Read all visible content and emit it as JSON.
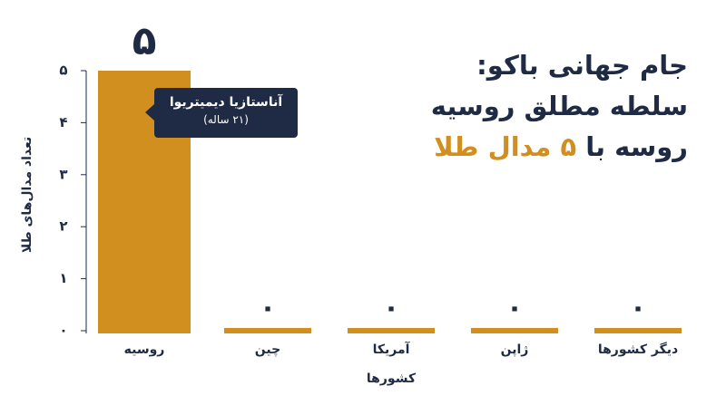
{
  "chart_data": {
    "type": "bar",
    "title": {
      "lines": [
        "جام جهانی باکو:",
        "سلطه مطلق روسیه",
        "روسه با"
      ],
      "highlight": "۵ مدال طلا"
    },
    "categories": [
      "روسیه",
      "چین",
      "آمریکا",
      "ژاپن",
      "دیگر کشورها"
    ],
    "values": [
      5,
      0,
      0,
      0,
      0
    ],
    "value_labels": [
      "۵",
      "۰",
      "۰",
      "۰",
      "۰"
    ],
    "color": "#d18f1f",
    "xlabel": "کشورها",
    "ylabel": "تعداد مدال‌های طلا",
    "ylim": [
      0,
      5
    ],
    "yticks": [
      {
        "value": 0,
        "label": "۰"
      },
      {
        "value": 1,
        "label": "۱"
      },
      {
        "value": 2,
        "label": "۲"
      },
      {
        "value": 3,
        "label": "۳"
      },
      {
        "value": 4,
        "label": "۴"
      },
      {
        "value": 5,
        "label": "۵"
      }
    ],
    "annotation": {
      "name": "آناستازیا دیمیتریوا",
      "detail": "(۲۱ ساله)"
    }
  }
}
